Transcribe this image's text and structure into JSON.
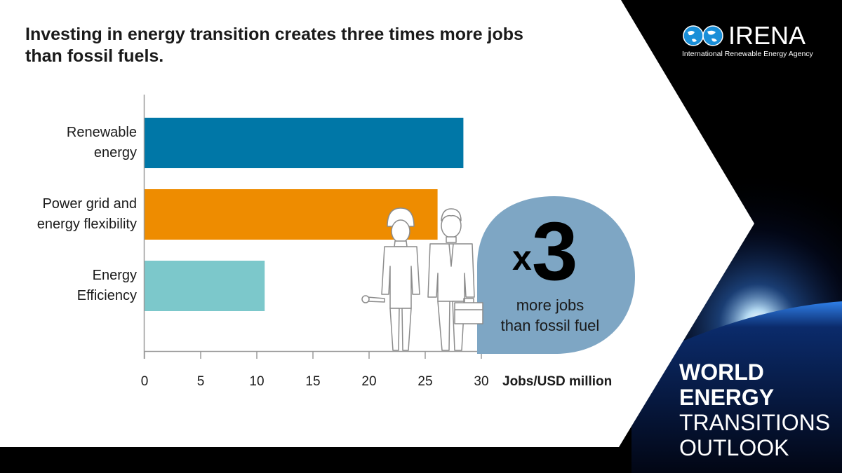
{
  "title": "Investing in energy transition creates three times more jobs than fossil fuels.",
  "logo": {
    "name": "IRENA",
    "subtitle": "International Renewable Energy Agency"
  },
  "report": {
    "line1": "WORLD",
    "line2": "ENERGY",
    "line3": "TRANSITIONS",
    "line4": "OUTLOOK"
  },
  "callout": {
    "multiplier_prefix": "x",
    "multiplier_value": "3",
    "text_line1": "more jobs",
    "text_line2": "than fossil fuel"
  },
  "colors": {
    "renewable": "#0077A7",
    "grid": "#EE8C00",
    "efficiency": "#7CC8CB",
    "bubble": "#7EA6C4",
    "axis": "#999999",
    "background_panel": "#FFFFFF"
  },
  "chart_data": {
    "type": "bar",
    "orientation": "horizontal",
    "categories": [
      "Renewable energy",
      "Power grid and energy flexibility",
      "Energy Efficiency"
    ],
    "category_lines": [
      [
        "Renewable",
        "energy"
      ],
      [
        "Power grid and",
        "energy flexibility"
      ],
      [
        "Energy",
        "Efficiency"
      ]
    ],
    "values": [
      28.4,
      26.1,
      10.7
    ],
    "xlabel": "Jobs/USD million",
    "xlim": [
      0,
      30
    ],
    "xticks": [
      "0",
      "5",
      "10",
      "15",
      "20",
      "25",
      "30"
    ],
    "grid": false
  }
}
